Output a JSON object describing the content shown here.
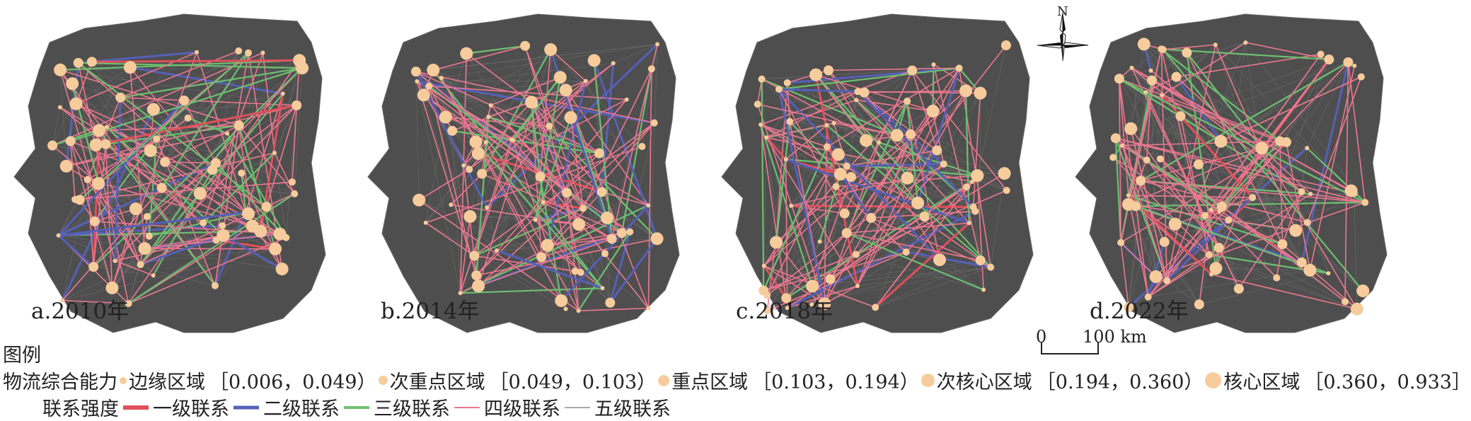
{
  "panels": [
    {
      "label": "a.2010年"
    },
    {
      "label": "b.2014年"
    },
    {
      "label": "c.2018年"
    },
    {
      "label": "d.2022年"
    }
  ],
  "compass": {
    "label": "N"
  },
  "scale": {
    "zero": "0",
    "end": "100 km"
  },
  "legend": {
    "title": "图例",
    "capacity_label": "物流综合能力",
    "classes": [
      {
        "name": "边缘区域",
        "range": "［0.006，0.049）"
      },
      {
        "name": "次重点区域",
        "range": "［0.049，0.103）"
      },
      {
        "name": "重点区域",
        "range": "［0.103，0.194）"
      },
      {
        "name": "次核心区域",
        "range": "［0.194，0.360）"
      },
      {
        "name": "核心区域",
        "range": "［0.360，0.933］"
      }
    ],
    "strength_label": "联系强度",
    "levels": [
      {
        "name": "一级联系",
        "color": "#e0505a"
      },
      {
        "name": "二级联系",
        "color": "#5560b8"
      },
      {
        "name": "三级联系",
        "color": "#6cc070"
      },
      {
        "name": "四级联系",
        "color": "#ec7890"
      },
      {
        "name": "五级联系",
        "color": "#555555"
      }
    ]
  },
  "colors": {
    "node": "#f7cc9c",
    "background_links": "#555555"
  }
}
